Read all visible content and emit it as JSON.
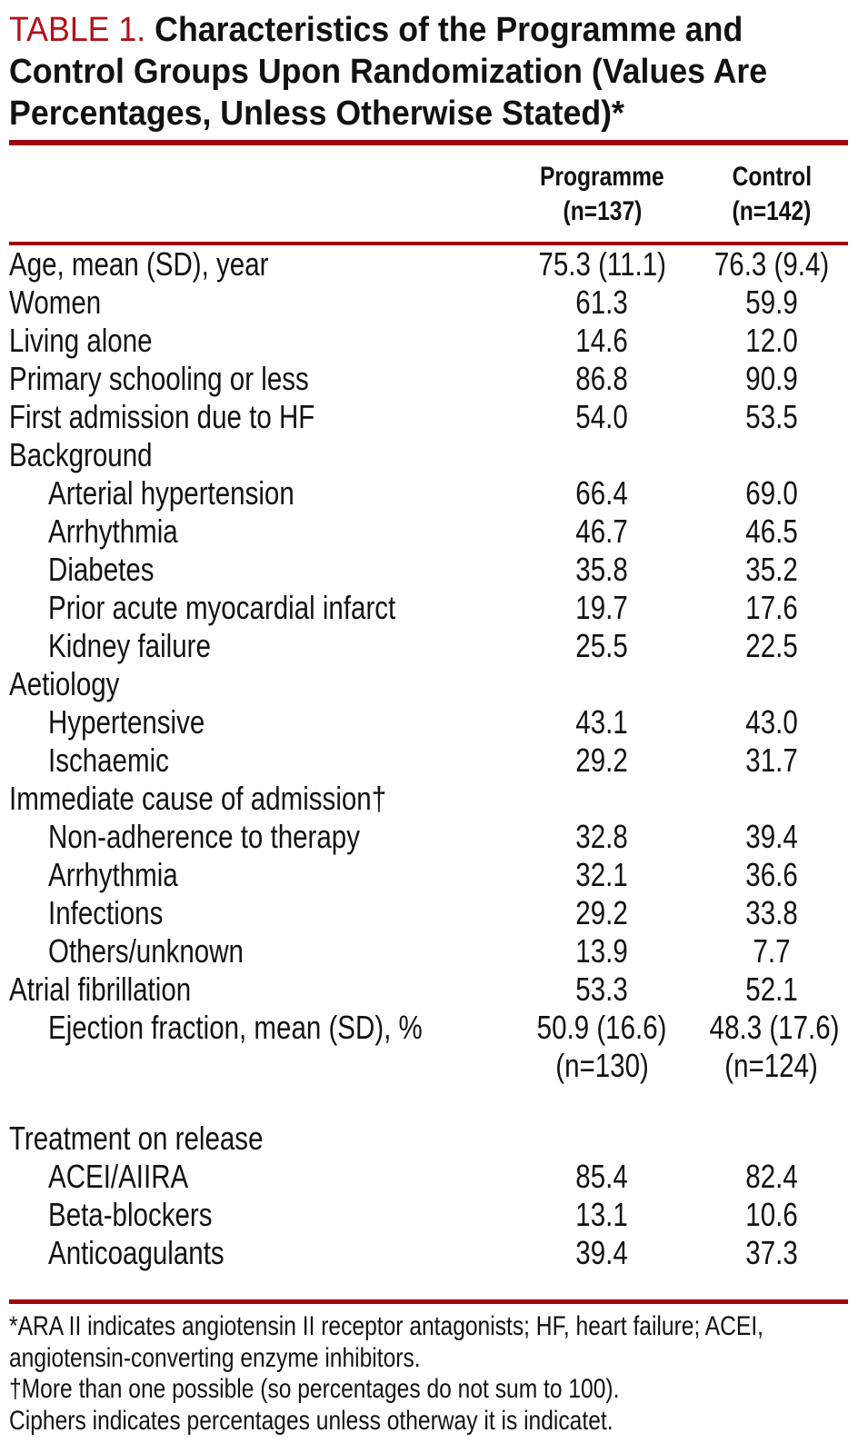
{
  "colors": {
    "title_red": "#b11218",
    "rule_red": "#a00711",
    "text": "#121212",
    "background": "#ffffff"
  },
  "title": {
    "label": "TABLE 1.",
    "lines": [
      "Characteristics of the Programme and",
      "Control Groups Upon Randomization (Values Are",
      "Percentages, Unless Otherwise Stated)*"
    ]
  },
  "columns": [
    {
      "name": "Programme",
      "n": "(n=137)"
    },
    {
      "name": "Control",
      "n": "(n=142)"
    }
  ],
  "rows": [
    {
      "label": "Age, mean (SD), year",
      "indent": 0,
      "programme": "75.3 (11.1)",
      "control": "76.3 (9.4)"
    },
    {
      "label": "Women",
      "indent": 0,
      "programme": "61.3",
      "control": "59.9"
    },
    {
      "label": "Living alone",
      "indent": 0,
      "programme": "14.6",
      "control": "12.0"
    },
    {
      "label": "Primary schooling or less",
      "indent": 0,
      "programme": "86.8",
      "control": "90.9"
    },
    {
      "label": "First admission due to HF",
      "indent": 0,
      "programme": "54.0",
      "control": "53.5"
    },
    {
      "label": "Background",
      "indent": 0,
      "programme": "",
      "control": ""
    },
    {
      "label": "Arterial hypertension",
      "indent": 1,
      "programme": "66.4",
      "control": "69.0"
    },
    {
      "label": "Arrhythmia",
      "indent": 1,
      "programme": "46.7",
      "control": "46.5"
    },
    {
      "label": "Diabetes",
      "indent": 1,
      "programme": "35.8",
      "control": "35.2"
    },
    {
      "label": "Prior acute myocardial infarct",
      "indent": 1,
      "programme": "19.7",
      "control": "17.6"
    },
    {
      "label": "Kidney failure",
      "indent": 1,
      "programme": "25.5",
      "control": "22.5"
    },
    {
      "label": "Aetiology",
      "indent": 0,
      "programme": "",
      "control": ""
    },
    {
      "label": "Hypertensive",
      "indent": 1,
      "programme": "43.1",
      "control": "43.0"
    },
    {
      "label": "Ischaemic",
      "indent": 1,
      "programme": "29.2",
      "control": "31.7"
    },
    {
      "label": "Immediate cause of admission†",
      "indent": 0,
      "programme": "",
      "control": ""
    },
    {
      "label": "Non-adherence to therapy",
      "indent": 1,
      "programme": "32.8",
      "control": "39.4"
    },
    {
      "label": "Arrhythmia",
      "indent": 1,
      "programme": "32.1",
      "control": "36.6"
    },
    {
      "label": "Infections",
      "indent": 1,
      "programme": "29.2",
      "control": "33.8"
    },
    {
      "label": "Others/unknown",
      "indent": 1,
      "programme": "13.9",
      "control": "7.7"
    },
    {
      "label": "Atrial fibrillation",
      "indent": 0,
      "programme": "53.3",
      "control": "52.1"
    },
    {
      "label": "Ejection fraction, mean (SD), %",
      "indent": 1,
      "programme": "50.9 (16.6)",
      "control": "48.3 (17.6)"
    },
    {
      "label": "",
      "indent": 0,
      "programme": "(n=130)",
      "control": "(n=124)"
    },
    {
      "label": "",
      "indent": 0,
      "programme": "",
      "control": "",
      "spacer": true
    },
    {
      "label": "Treatment on release",
      "indent": 0,
      "programme": "",
      "control": ""
    },
    {
      "label": "ACEI/AIIRA",
      "indent": 1,
      "programme": "85.4",
      "control": "82.4"
    },
    {
      "label": "Beta-blockers",
      "indent": 1,
      "programme": "13.1",
      "control": "10.6"
    },
    {
      "label": "Anticoagulants",
      "indent": 1,
      "programme": "39.4",
      "control": "37.3"
    }
  ],
  "footnotes": [
    "*ARA II indicates angiotensin II receptor antagonists; HF, heart failure; ACEI,",
    "angiotensin-converting enzyme inhibitors.",
    "†More than one possible (so percentages do not sum to 100).",
    "Ciphers indicates percentages unless otherway it is indicatet."
  ]
}
